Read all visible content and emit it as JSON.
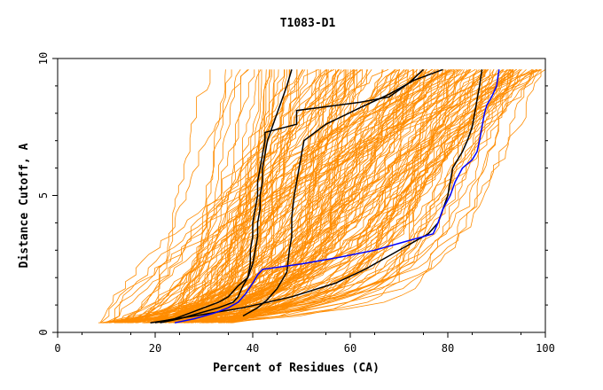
{
  "chart_data": {
    "type": "line",
    "title": "T1083-D1",
    "xlabel": "Percent of Residues (CA)",
    "ylabel": "Distance Cutoff, A",
    "xlim": [
      0,
      100
    ],
    "ylim": [
      0,
      10
    ],
    "x_ticks": [
      0,
      20,
      40,
      60,
      80,
      100
    ],
    "y_ticks": [
      0,
      5,
      10
    ],
    "grid": false,
    "background_series": {
      "name": "other models",
      "color": "#ff8c00",
      "count": 180
    },
    "series": [
      {
        "name": "black model 1",
        "color": "#000000",
        "points": [
          [
            20,
            0.35
          ],
          [
            24,
            0.5
          ],
          [
            27,
            0.7
          ],
          [
            30,
            0.9
          ],
          [
            33,
            1.1
          ],
          [
            35,
            1.3
          ],
          [
            37,
            1.7
          ],
          [
            39,
            2.0
          ],
          [
            40,
            2.5
          ],
          [
            40.5,
            3.0
          ],
          [
            41,
            3.5
          ],
          [
            41,
            4.0
          ],
          [
            41.5,
            4.5
          ],
          [
            41.5,
            5.0
          ],
          [
            42,
            5.5
          ],
          [
            42,
            6.0
          ],
          [
            42.5,
            6.5
          ],
          [
            43,
            7.0
          ],
          [
            44,
            7.5
          ],
          [
            45,
            8.0
          ],
          [
            46,
            8.5
          ],
          [
            47,
            9.0
          ],
          [
            48,
            9.6
          ]
        ]
      },
      {
        "name": "black model 2",
        "color": "#000000",
        "points": [
          [
            21,
            0.35
          ],
          [
            25,
            0.5
          ],
          [
            29,
            0.7
          ],
          [
            33,
            0.9
          ],
          [
            36,
            1.1
          ],
          [
            37,
            1.3
          ],
          [
            38,
            1.7
          ],
          [
            39,
            2.0
          ],
          [
            39.5,
            2.5
          ],
          [
            39.5,
            3.0
          ],
          [
            40,
            3.5
          ],
          [
            40,
            4.0
          ],
          [
            40.5,
            4.5
          ],
          [
            41,
            5.0
          ],
          [
            41,
            5.5
          ],
          [
            41.5,
            6.0
          ],
          [
            42,
            6.5
          ],
          [
            42.5,
            7.0
          ],
          [
            42.5,
            7.3
          ],
          [
            49,
            7.6
          ],
          [
            49,
            8.1
          ],
          [
            62,
            8.4
          ],
          [
            68,
            8.6
          ],
          [
            72,
            9.1
          ],
          [
            75,
            9.6
          ]
        ]
      },
      {
        "name": "black model 3",
        "color": "#000000",
        "points": [
          [
            19,
            0.35
          ],
          [
            28,
            0.6
          ],
          [
            38,
            0.9
          ],
          [
            48,
            1.3
          ],
          [
            57,
            1.8
          ],
          [
            63,
            2.3
          ],
          [
            68,
            2.8
          ],
          [
            73,
            3.3
          ],
          [
            76,
            3.6
          ],
          [
            78,
            4.0
          ],
          [
            79,
            4.5
          ],
          [
            80,
            5.0
          ],
          [
            80.5,
            5.5
          ],
          [
            81,
            6.0
          ],
          [
            82,
            6.3
          ],
          [
            83,
            6.6
          ],
          [
            84,
            7.0
          ],
          [
            85,
            7.5
          ],
          [
            85.5,
            8.0
          ],
          [
            86,
            8.5
          ],
          [
            86.5,
            9.0
          ],
          [
            87,
            9.6
          ]
        ]
      },
      {
        "name": "black model 4",
        "color": "#000000",
        "points": [
          [
            38,
            0.6
          ],
          [
            41,
            0.9
          ],
          [
            43,
            1.2
          ],
          [
            45,
            1.6
          ],
          [
            47,
            2.2
          ],
          [
            47.5,
            3.0
          ],
          [
            48,
            3.5
          ],
          [
            48,
            4.2
          ],
          [
            48.5,
            5.0
          ],
          [
            49,
            5.5
          ],
          [
            49.5,
            6.0
          ],
          [
            50,
            6.5
          ],
          [
            50.5,
            7.0
          ],
          [
            55,
            7.6
          ],
          [
            62,
            8.2
          ],
          [
            68,
            8.7
          ],
          [
            73,
            9.2
          ],
          [
            79,
            9.6
          ]
        ]
      },
      {
        "name": "highlighted model",
        "color": "#0000ff",
        "points": [
          [
            24,
            0.35
          ],
          [
            28,
            0.5
          ],
          [
            32,
            0.7
          ],
          [
            35,
            0.9
          ],
          [
            37,
            1.1
          ],
          [
            38.5,
            1.4
          ],
          [
            40,
            1.8
          ],
          [
            41,
            2.1
          ],
          [
            42,
            2.3
          ],
          [
            50,
            2.5
          ],
          [
            58,
            2.75
          ],
          [
            65,
            3.0
          ],
          [
            71,
            3.3
          ],
          [
            77,
            3.6
          ],
          [
            78,
            4.0
          ],
          [
            79,
            4.5
          ],
          [
            80.5,
            5.0
          ],
          [
            81.5,
            5.5
          ],
          [
            83,
            6.0
          ],
          [
            85,
            6.3
          ],
          [
            86,
            6.6
          ],
          [
            86.5,
            7.0
          ],
          [
            87,
            7.5
          ],
          [
            87.5,
            8.0
          ],
          [
            88,
            8.3
          ],
          [
            89,
            8.6
          ],
          [
            90,
            9.0
          ],
          [
            90.5,
            9.6
          ]
        ]
      }
    ]
  }
}
